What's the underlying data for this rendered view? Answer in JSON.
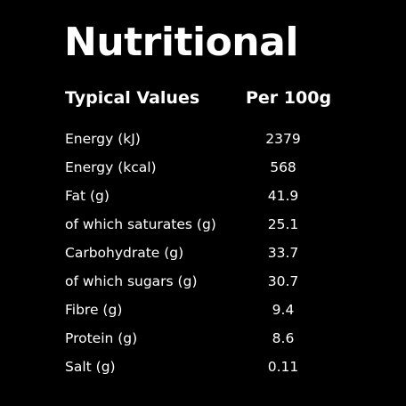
{
  "title": "Nutritional",
  "header": {
    "label": "Typical Values",
    "value": "Per 100g"
  },
  "rows": [
    {
      "label": "Energy (kJ)",
      "value": "2379"
    },
    {
      "label": "Energy (kcal)",
      "value": "568"
    },
    {
      "label": "Fat (g)",
      "value": "41.9"
    },
    {
      "label": "of which saturates (g)",
      "value": "25.1"
    },
    {
      "label": "Carbohydrate (g)",
      "value": "33.7"
    },
    {
      "label": "of which sugars (g)",
      "value": "30.7"
    },
    {
      "label": "Fibre (g)",
      "value": "9.4"
    },
    {
      "label": "Protein (g)",
      "value": "8.6"
    },
    {
      "label": "Salt (g)",
      "value": "0.11"
    }
  ],
  "colors": {
    "background": "#000000",
    "text": "#ffffff"
  }
}
